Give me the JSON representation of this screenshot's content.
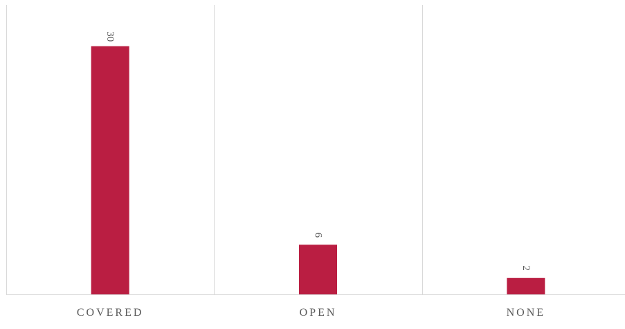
{
  "chart_data": {
    "type": "bar",
    "categories": [
      "COVERED",
      "OPEN",
      "NONE"
    ],
    "values": [
      30,
      6,
      2
    ],
    "title": "",
    "xlabel": "",
    "ylabel": "",
    "ylim": [
      0,
      35
    ],
    "grid": "vertical category separators",
    "legend": "none",
    "data_labels": true,
    "colors": {
      "bar": "#BA1E42",
      "gridline": "#D9D9D9",
      "axis": "#D9D9D9",
      "label_text": "#595959"
    }
  }
}
